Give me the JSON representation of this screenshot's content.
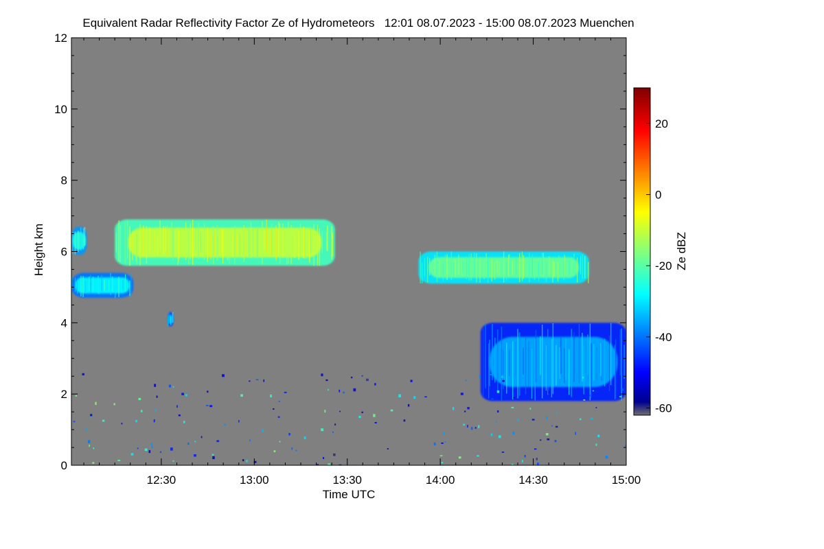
{
  "chart_data": {
    "type": "heatmap",
    "title": "Equivalent Radar Reflectivity Factor Ze of Hydrometeors   12:01 08.07.2023 - 15:00 08.07.2023 Muenchen",
    "xlabel": "Time UTC",
    "ylabel": "Height km",
    "x_range": [
      "12:01",
      "15:00"
    ],
    "x_ticks": [
      "12:30",
      "13:00",
      "13:30",
      "14:00",
      "14:30",
      "15:00"
    ],
    "ylim": [
      0,
      12
    ],
    "y_ticks": [
      "0",
      "2",
      "4",
      "6",
      "8",
      "10",
      "12"
    ],
    "colorbar": {
      "label": "Ze dBZ",
      "range": [
        -62,
        30
      ],
      "ticks": [
        "-60",
        "-40",
        "-20",
        "0",
        "20"
      ]
    },
    "background_color": "#808080",
    "features": [
      {
        "label": "cloud layer",
        "time_start": "12:01",
        "time_end": "12:06",
        "height_bottom_km": 5.9,
        "height_top_km": 6.7,
        "ze_dbz": -25
      },
      {
        "label": "cloud layer",
        "time_start": "12:01",
        "time_end": "12:21",
        "height_bottom_km": 4.7,
        "height_top_km": 5.4,
        "ze_dbz": -28
      },
      {
        "label": "mid-level cloud",
        "time_start": "12:15",
        "time_end": "13:26",
        "height_bottom_km": 5.6,
        "height_top_km": 6.9,
        "ze_dbz": -10
      },
      {
        "label": "small echo",
        "time_start": "12:32",
        "time_end": "12:34",
        "height_bottom_km": 3.9,
        "height_top_km": 4.3,
        "ze_dbz": -32
      },
      {
        "label": "mid-level cloud",
        "time_start": "13:53",
        "time_end": "14:48",
        "height_bottom_km": 5.1,
        "height_top_km": 6.0,
        "ze_dbz": -18
      },
      {
        "label": "precipitation streaks",
        "time_start": "14:13",
        "time_end": "15:00",
        "height_bottom_km": 1.8,
        "height_top_km": 4.0,
        "ze_dbz": -35
      }
    ]
  }
}
